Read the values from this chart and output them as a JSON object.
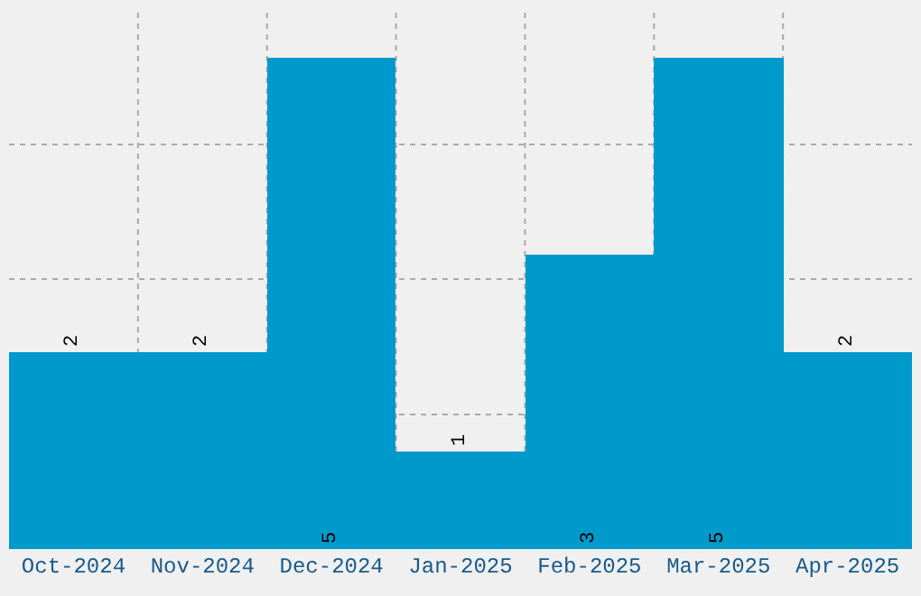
{
  "chart_data": {
    "type": "bar",
    "categories": [
      "Oct-2024",
      "Nov-2024",
      "Dec-2024",
      "Jan-2025",
      "Feb-2025",
      "Mar-2025",
      "Apr-2025"
    ],
    "values": [
      2,
      2,
      5,
      1,
      3,
      5,
      2
    ],
    "color": "#0099cc",
    "data_labels": true,
    "ylim": [
      0,
      5.5
    ],
    "yticks": [
      {
        "value": 1.375,
        "label": null
      },
      {
        "value": 2.75,
        "label": null
      },
      {
        "value": 4.125,
        "label": null
      }
    ],
    "tick_labels": "x",
    "grid": true,
    "legend": false
  }
}
